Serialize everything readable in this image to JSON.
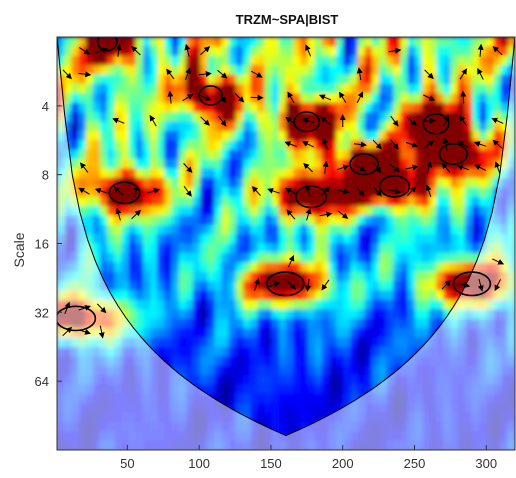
{
  "chart_data": {
    "type": "heatmap",
    "title": "TRZM~SPA|BIST",
    "xlabel": "",
    "ylabel": "Scale",
    "x_ticks": [
      "50",
      "100",
      "150",
      "200",
      "250",
      "300"
    ],
    "y_ticks": [
      "4",
      "8",
      "16",
      "32",
      "64"
    ],
    "xlim": [
      1,
      320
    ],
    "ylim": [
      2,
      128
    ],
    "y_scale": "log2",
    "y_reversed": true,
    "colormap": "jet",
    "colors": {
      "low": "#00008f",
      "high": "#800000",
      "contour": "#000000",
      "arrow": "#000000"
    },
    "significant_regions": [
      {
        "t": 36,
        "scale": 2.1
      },
      {
        "t": 108,
        "scale": 3.6
      },
      {
        "t": 175,
        "scale": 4.7
      },
      {
        "t": 265,
        "scale": 4.8
      },
      {
        "t": 277,
        "scale": 6.5
      },
      {
        "t": 215,
        "scale": 7.2
      },
      {
        "t": 48,
        "scale": 9.6
      },
      {
        "t": 178,
        "scale": 10.0
      },
      {
        "t": 236,
        "scale": 9.0
      },
      {
        "t": 160,
        "scale": 24.0
      },
      {
        "t": 290,
        "scale": 24.0
      },
      {
        "t": 14,
        "scale": 34.0
      }
    ]
  }
}
